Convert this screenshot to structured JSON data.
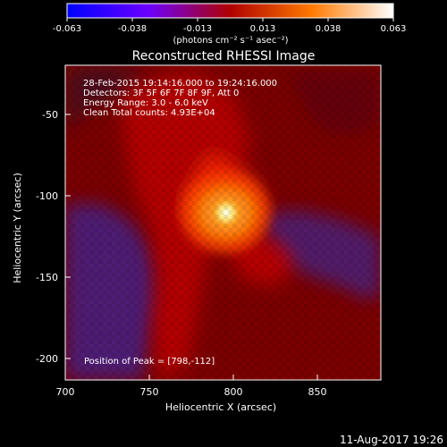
{
  "colorbar": {
    "tick_labels": [
      "-0.063",
      "-0.038",
      "-0.013",
      "0.013",
      "0.038",
      "0.063"
    ],
    "units": "(photons cm⁻² s⁻¹ asec⁻²)"
  },
  "plot": {
    "title": "Reconstructed RHESSI Image",
    "info_lines": [
      "28-Feb-2015 19:14:16.000 to 19:24:16.000",
      "Detectors: 3F 5F 6F 7F 8F 9F, Att 0",
      "Energy Range: 3.0 - 6.0 keV",
      "Clean     Total counts: 4.93E+04"
    ],
    "peak_text": "Position of Peak = [798,-112]",
    "x_axis": {
      "label": "Heliocentric X (arcsec)",
      "ticks": [
        "700",
        "750",
        "800",
        "850"
      ]
    },
    "y_axis": {
      "label": "Heliocentric Y (arcsec)",
      "ticks": [
        "-50",
        "-100",
        "-150",
        "-200"
      ]
    }
  },
  "footer": {
    "timestamp": "11-Aug-2017 19:26"
  },
  "colors": {
    "background": "#000000",
    "axis": "#ffffff",
    "colormap": [
      "#0000ff",
      "#7a00ff",
      "#ff0000",
      "#ff9900",
      "#ffffff"
    ]
  }
}
